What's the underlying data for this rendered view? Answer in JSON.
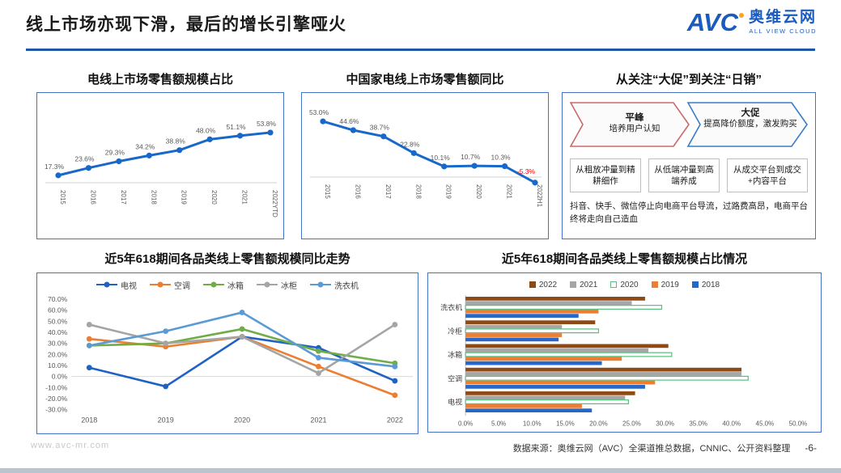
{
  "header": {
    "title": "线上市场亦现下滑，最后的增长引擎哑火",
    "logo": {
      "avc": "AVC",
      "cn": "奥维云网",
      "en": "ALL VIEW CLOUD"
    }
  },
  "panels": {
    "promo": {
      "title": "从关注“大促”到关注“日销”",
      "arrow_colors": [
        "#C96A6A",
        "#3A7CC4"
      ],
      "arrows": [
        {
          "title": "平峰",
          "desc": "培养用户认知"
        },
        {
          "title": "大促",
          "desc": "提高降价额度，激发购买"
        }
      ],
      "boxes": [
        "从粗放冲量到精耕细作",
        "从低端冲量到高端养成",
        "从成交平台到成交+内容平台"
      ],
      "note": "抖音、快手、微信停止向电商平台导流，过路费高昂，电商平台终将走向自己造血"
    }
  },
  "footer": {
    "watermark": "www.avc-mr.com",
    "source": "数据来源：奥维云网（AVC）全渠道推总数据，CNNIC、公开资料整理",
    "page": "-6-"
  },
  "chart_data": [
    {
      "id": "online_share",
      "type": "line",
      "title": "电线上市场零售额规模占比",
      "categories": [
        "2015",
        "2016",
        "2017",
        "2018",
        "2019",
        "2020",
        "2021",
        "2022YTD"
      ],
      "values": [
        17.3,
        23.6,
        29.3,
        34.2,
        38.8,
        48.0,
        51.1,
        53.8
      ],
      "unit": "%",
      "line_color": "#1868C9",
      "label_color": "#595959",
      "ylim": [
        15,
        60
      ],
      "grid": false
    },
    {
      "id": "online_yoy",
      "type": "line",
      "title": "中国家电线上市场零售额同比",
      "categories": [
        "2015",
        "2016",
        "2017",
        "2018",
        "2019",
        "2020",
        "2021",
        "2022H1"
      ],
      "values": [
        53.0,
        44.6,
        38.7,
        22.8,
        10.1,
        10.7,
        10.3,
        -5.3
      ],
      "unit": "%",
      "line_color": "#1868C9",
      "label_color": "#595959",
      "negative_label_color": "#FF0000",
      "ylim": [
        -10,
        60
      ],
      "grid": false
    },
    {
      "id": "cat_618_yoy",
      "type": "line",
      "title": "近5年618期间各品类线上零售额规模同比走势",
      "categories": [
        "2018",
        "2019",
        "2020",
        "2021",
        "2022"
      ],
      "series": [
        {
          "name": "电视",
          "color": "#1F62C4",
          "values": [
            8,
            -9,
            36,
            26,
            -4
          ]
        },
        {
          "name": "空调",
          "color": "#ED7D31",
          "values": [
            34,
            27,
            36,
            9,
            -17
          ]
        },
        {
          "name": "冰箱",
          "color": "#70AD47",
          "values": [
            28,
            30,
            43,
            23,
            12
          ]
        },
        {
          "name": "冰柜",
          "color": "#A5A5A5",
          "values": [
            47,
            30,
            36,
            3,
            47
          ]
        },
        {
          "name": "洗衣机",
          "color": "#5B9BD5",
          "values": [
            28,
            41,
            58,
            17,
            9
          ]
        }
      ],
      "ylim": [
        -30,
        70
      ],
      "ytick_step": 10,
      "unit": "%",
      "legend_position": "top",
      "grid": "zero-line-only"
    },
    {
      "id": "cat_618_share",
      "type": "bar",
      "orientation": "horizontal",
      "title": "近5年618期间各品类线上零售额规模占比情况",
      "categories": [
        "洗衣机",
        "冷柜",
        "冰箱",
        "空调",
        "电视"
      ],
      "series": [
        {
          "name": "2022",
          "color": "#8E4A15",
          "values": [
            27,
            19.5,
            30.5,
            41.5,
            25.5
          ]
        },
        {
          "name": "2021",
          "color": "#A6A6A6",
          "values": [
            25,
            14.5,
            27.5,
            41.5,
            24
          ]
        },
        {
          "name": "2020",
          "color": "#FFFFFF",
          "border_color": "#57BE7E",
          "values": [
            29.5,
            20,
            31,
            42.5,
            24.5
          ]
        },
        {
          "name": "2019",
          "color": "#ED7D31",
          "values": [
            20,
            14.5,
            23.5,
            28.5,
            17.5
          ]
        },
        {
          "name": "2018",
          "color": "#2767C8",
          "values": [
            17,
            14,
            20.5,
            27,
            19
          ]
        }
      ],
      "xlim": [
        0,
        50
      ],
      "xtick_step": 5,
      "unit": "%",
      "legend_position": "top",
      "grid": false
    }
  ]
}
